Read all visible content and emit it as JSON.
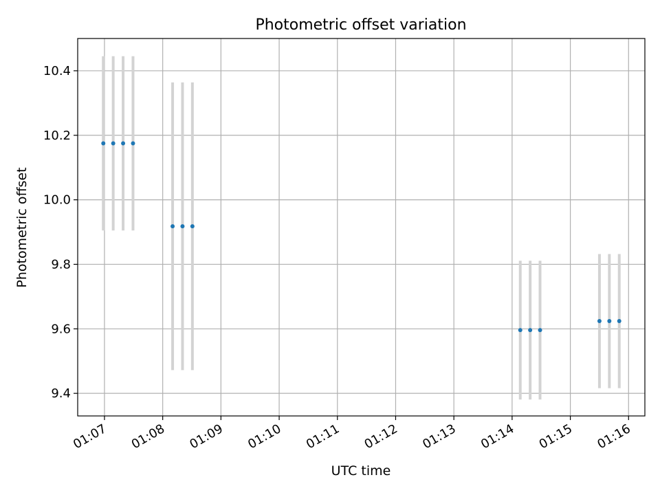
{
  "chart_data": {
    "type": "scatter",
    "title": "Photometric offset variation",
    "xlabel": "UTC time",
    "ylabel": "Photometric offset",
    "x_ticks": [
      "01:07",
      "01:08",
      "01:09",
      "01:10",
      "01:11",
      "01:12",
      "01:13",
      "01:14",
      "01:15",
      "01:16"
    ],
    "y_ticks": [
      9.4,
      9.6,
      9.8,
      10.0,
      10.2,
      10.4
    ],
    "xlim": [
      "00:01:06.54",
      "00:01:16.28"
    ],
    "ylim": [
      9.33,
      10.5
    ],
    "grid": true,
    "marker_color": "#1f77b4",
    "errorbar_color": "#d3d3d3",
    "points": [
      {
        "x": "01:06.98",
        "y": 10.175,
        "err": 0.27
      },
      {
        "x": "01:07.15",
        "y": 10.175,
        "err": 0.27
      },
      {
        "x": "01:07.32",
        "y": 10.175,
        "err": 0.27
      },
      {
        "x": "01:07.49",
        "y": 10.175,
        "err": 0.27
      },
      {
        "x": "01:08.17",
        "y": 9.918,
        "err": 0.446
      },
      {
        "x": "01:08.34",
        "y": 9.918,
        "err": 0.446
      },
      {
        "x": "01:08.51",
        "y": 9.918,
        "err": 0.446
      },
      {
        "x": "01:14.14",
        "y": 9.596,
        "err": 0.215
      },
      {
        "x": "01:14.31",
        "y": 9.596,
        "err": 0.215
      },
      {
        "x": "01:14.48",
        "y": 9.596,
        "err": 0.215
      },
      {
        "x": "01:15.50",
        "y": 9.624,
        "err": 0.208
      },
      {
        "x": "01:15.67",
        "y": 9.624,
        "err": 0.208
      },
      {
        "x": "01:15.84",
        "y": 9.624,
        "err": 0.208
      }
    ]
  }
}
